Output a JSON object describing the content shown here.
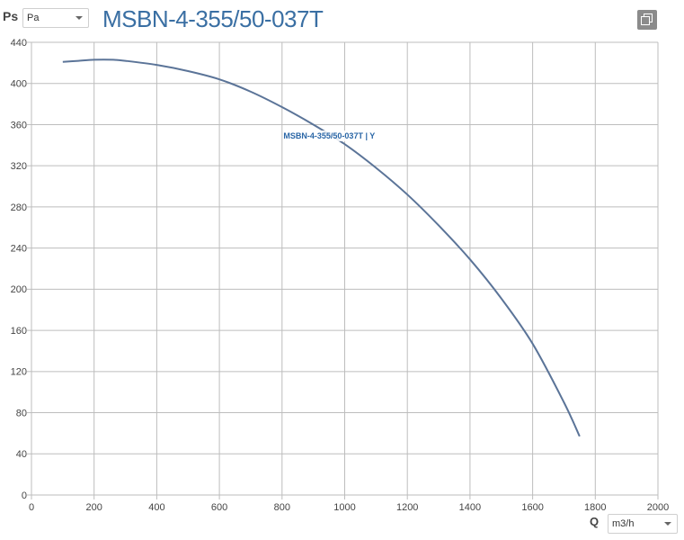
{
  "header": {
    "y_quantity": "Ps",
    "y_unit": "Pa",
    "title": "MSBN-4-355/50-037T",
    "copy_icon": "copy-icon"
  },
  "footer": {
    "x_quantity": "Q",
    "x_unit": "m3/h"
  },
  "colors": {
    "curve": "#5b7498",
    "grid": "#bdbdbd",
    "title": "#3a6fa3",
    "series_label": "#2a66a6"
  },
  "chart_data": {
    "type": "line",
    "title": "MSBN-4-355/50-037T",
    "xlabel": "Q",
    "ylabel": "Ps",
    "x_unit": "m3/h",
    "y_unit": "Pa",
    "xlim": [
      0,
      2000
    ],
    "ylim": [
      0,
      440
    ],
    "x_ticks": [
      0,
      200,
      400,
      600,
      800,
      1000,
      1200,
      1400,
      1600,
      1800,
      2000
    ],
    "y_ticks": [
      0,
      40,
      80,
      120,
      160,
      200,
      240,
      280,
      320,
      360,
      400,
      440
    ],
    "grid": true,
    "series": [
      {
        "name": "MSBN-4-355/50-037T | Y",
        "x": [
          100,
          150,
          200,
          260,
          300,
          400,
          500,
          600,
          700,
          800,
          900,
          1000,
          1100,
          1200,
          1300,
          1400,
          1500,
          1600,
          1700,
          1750
        ],
        "y": [
          421,
          422,
          423,
          423,
          422,
          418,
          412,
          404,
          392,
          377,
          360,
          341,
          318,
          292,
          262,
          229,
          191,
          147,
          90,
          57
        ]
      }
    ]
  }
}
